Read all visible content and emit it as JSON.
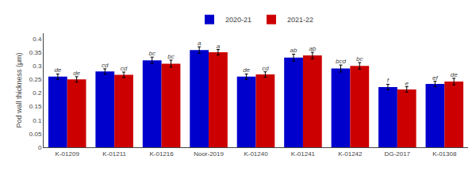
{
  "chart_data": {
    "type": "bar",
    "ylabel": "Pod wall thickness (μm)",
    "categories": [
      "K-01209",
      "K-01211",
      "K-01216",
      "Noor-2019",
      "K-01240",
      "K-01241",
      "K-01242",
      "DG-2017",
      "K-01308"
    ],
    "series": [
      {
        "name": "2020-21",
        "color": "#0000CC",
        "values": [
          0.26,
          0.279,
          0.32,
          0.358,
          0.26,
          0.33,
          0.29,
          0.222,
          0.233
        ],
        "errors": [
          0.01,
          0.01,
          0.012,
          0.012,
          0.01,
          0.013,
          0.013,
          0.01,
          0.01
        ],
        "labels": [
          "de",
          "cd",
          "bc",
          "a",
          "de",
          "ab",
          "bcd",
          "f",
          "ef"
        ]
      },
      {
        "name": "2021-22",
        "color": "#CC0000",
        "values": [
          0.25,
          0.267,
          0.308,
          0.35,
          0.268,
          0.338,
          0.3,
          0.213,
          0.242
        ],
        "errors": [
          0.01,
          0.01,
          0.013,
          0.01,
          0.01,
          0.012,
          0.012,
          0.01,
          0.012
        ],
        "labels": [
          "de",
          "cd",
          "bc",
          "a",
          "cd",
          "ab",
          "bc",
          "e",
          "de"
        ]
      }
    ],
    "ylim": [
      0,
      0.42
    ],
    "yticks": [
      0,
      0.05,
      0.1,
      0.15,
      0.2,
      0.25,
      0.3,
      0.35,
      0.4
    ],
    "grid": false,
    "legend": "top"
  }
}
